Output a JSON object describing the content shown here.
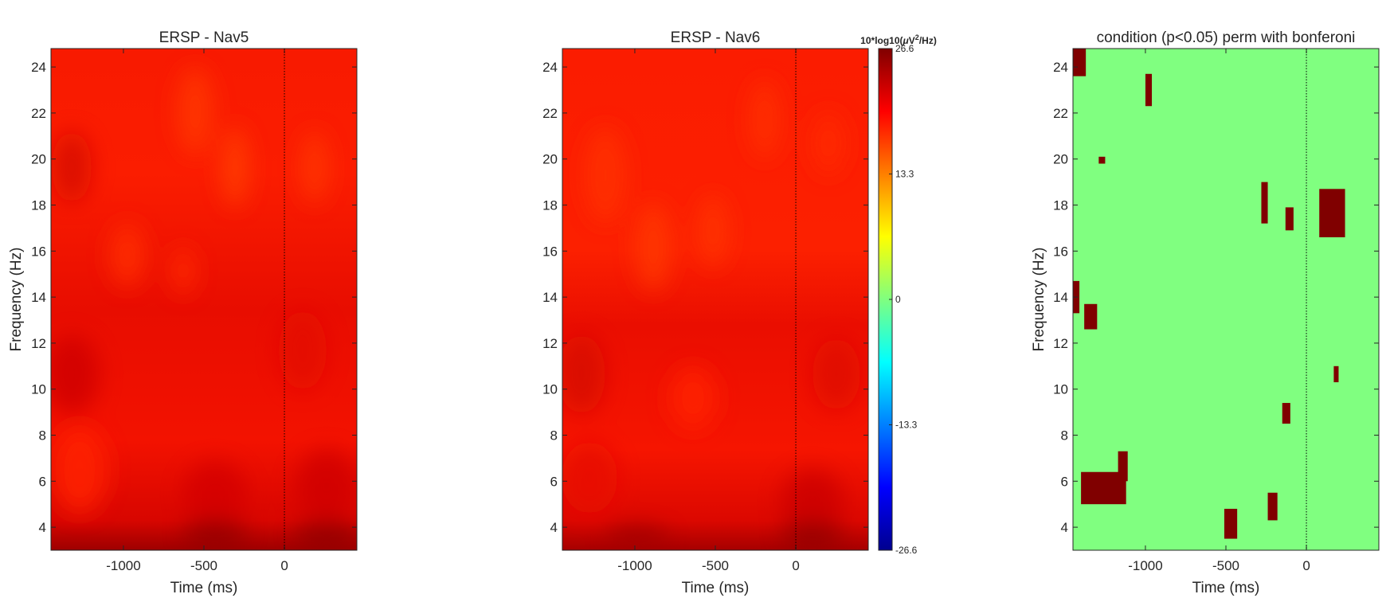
{
  "chart_data": [
    {
      "type": "heatmap",
      "title": "ERSP - Nav5",
      "xlabel": "Time (ms)",
      "ylabel": "Frequency (Hz)",
      "xlim": [
        -1450,
        450
      ],
      "ylim": [
        3,
        24.8
      ],
      "xticks": [
        -1000,
        -500,
        0
      ],
      "xtick_labels": [
        "-1000",
        "-500",
        "0"
      ],
      "yticks": [
        4,
        6,
        8,
        10,
        12,
        14,
        16,
        18,
        20,
        22,
        24
      ],
      "ytick_labels": [
        "4",
        "6",
        "8",
        "10",
        "12",
        "14",
        "16",
        "18",
        "20",
        "22",
        "24"
      ],
      "event_line_x": 0,
      "approx_value_range": [
        17,
        22
      ],
      "colormap": "jet"
    },
    {
      "type": "heatmap",
      "title": "ERSP - Nav6",
      "xlabel": "Time (ms)",
      "ylabel": "",
      "xlim": [
        -1450,
        450
      ],
      "ylim": [
        3,
        24.8
      ],
      "xticks": [
        -1000,
        -500,
        0
      ],
      "xtick_labels": [
        "-1000",
        "-500",
        "0"
      ],
      "yticks": [
        4,
        6,
        8,
        10,
        12,
        14,
        16,
        18,
        20,
        22,
        24
      ],
      "ytick_labels": [
        "4",
        "6",
        "8",
        "10",
        "12",
        "14",
        "16",
        "18",
        "20",
        "22",
        "24"
      ],
      "event_line_x": 0,
      "approx_value_range": [
        17,
        22
      ],
      "colormap": "jet",
      "colorbar": {
        "label": "10*log10(μV²/Hz)",
        "label_base": "10*log10(",
        "label_mu": "μ",
        "label_v": "V",
        "label_sup": "2",
        "label_end": "/Hz)",
        "clim": [
          -26.6,
          26.6
        ],
        "ticks": [
          26.6,
          13.3,
          0,
          -13.3,
          -26.6
        ],
        "tick_labels": [
          "26.6",
          "13.3",
          "0",
          "-13.3",
          "-26.6"
        ]
      }
    },
    {
      "type": "heatmap",
      "title": "condition (p<0.05) perm with bonferoni",
      "xlabel": "Time (ms)",
      "ylabel": "Frequency (Hz)",
      "xlim": [
        -1450,
        450
      ],
      "ylim": [
        3,
        24.8
      ],
      "xticks": [
        -1000,
        -500,
        0
      ],
      "xtick_labels": [
        "-1000",
        "-500",
        "0"
      ],
      "yticks": [
        4,
        6,
        8,
        10,
        12,
        14,
        16,
        18,
        20,
        22,
        24
      ],
      "ytick_labels": [
        "4",
        "6",
        "8",
        "10",
        "12",
        "14",
        "16",
        "18",
        "20",
        "22",
        "24"
      ],
      "event_line_x": 0,
      "background_color": "#80ff80",
      "significant_color": "#800000",
      "significant_regions": [
        {
          "t": [
            -1450,
            -1370
          ],
          "f": [
            23.6,
            24.8
          ]
        },
        {
          "t": [
            -1000,
            -960
          ],
          "f": [
            22.3,
            23.7
          ]
        },
        {
          "t": [
            -1290,
            -1250
          ],
          "f": [
            19.8,
            20.1
          ]
        },
        {
          "t": [
            -280,
            -240
          ],
          "f": [
            17.2,
            19.0
          ]
        },
        {
          "t": [
            -130,
            -80
          ],
          "f": [
            16.9,
            17.9
          ]
        },
        {
          "t": [
            80,
            240
          ],
          "f": [
            16.6,
            18.7
          ]
        },
        {
          "t": [
            -1450,
            -1410
          ],
          "f": [
            13.3,
            14.7
          ]
        },
        {
          "t": [
            -1380,
            -1300
          ],
          "f": [
            12.6,
            13.7
          ]
        },
        {
          "t": [
            170,
            200
          ],
          "f": [
            10.3,
            11.0
          ]
        },
        {
          "t": [
            -150,
            -100
          ],
          "f": [
            8.5,
            9.4
          ]
        },
        {
          "t": [
            -1400,
            -1120
          ],
          "f": [
            5.0,
            6.4
          ]
        },
        {
          "t": [
            -1170,
            -1110
          ],
          "f": [
            6.0,
            7.3
          ]
        },
        {
          "t": [
            -240,
            -180
          ],
          "f": [
            4.3,
            5.5
          ]
        },
        {
          "t": [
            -510,
            -430
          ],
          "f": [
            3.5,
            4.8
          ]
        }
      ]
    }
  ]
}
